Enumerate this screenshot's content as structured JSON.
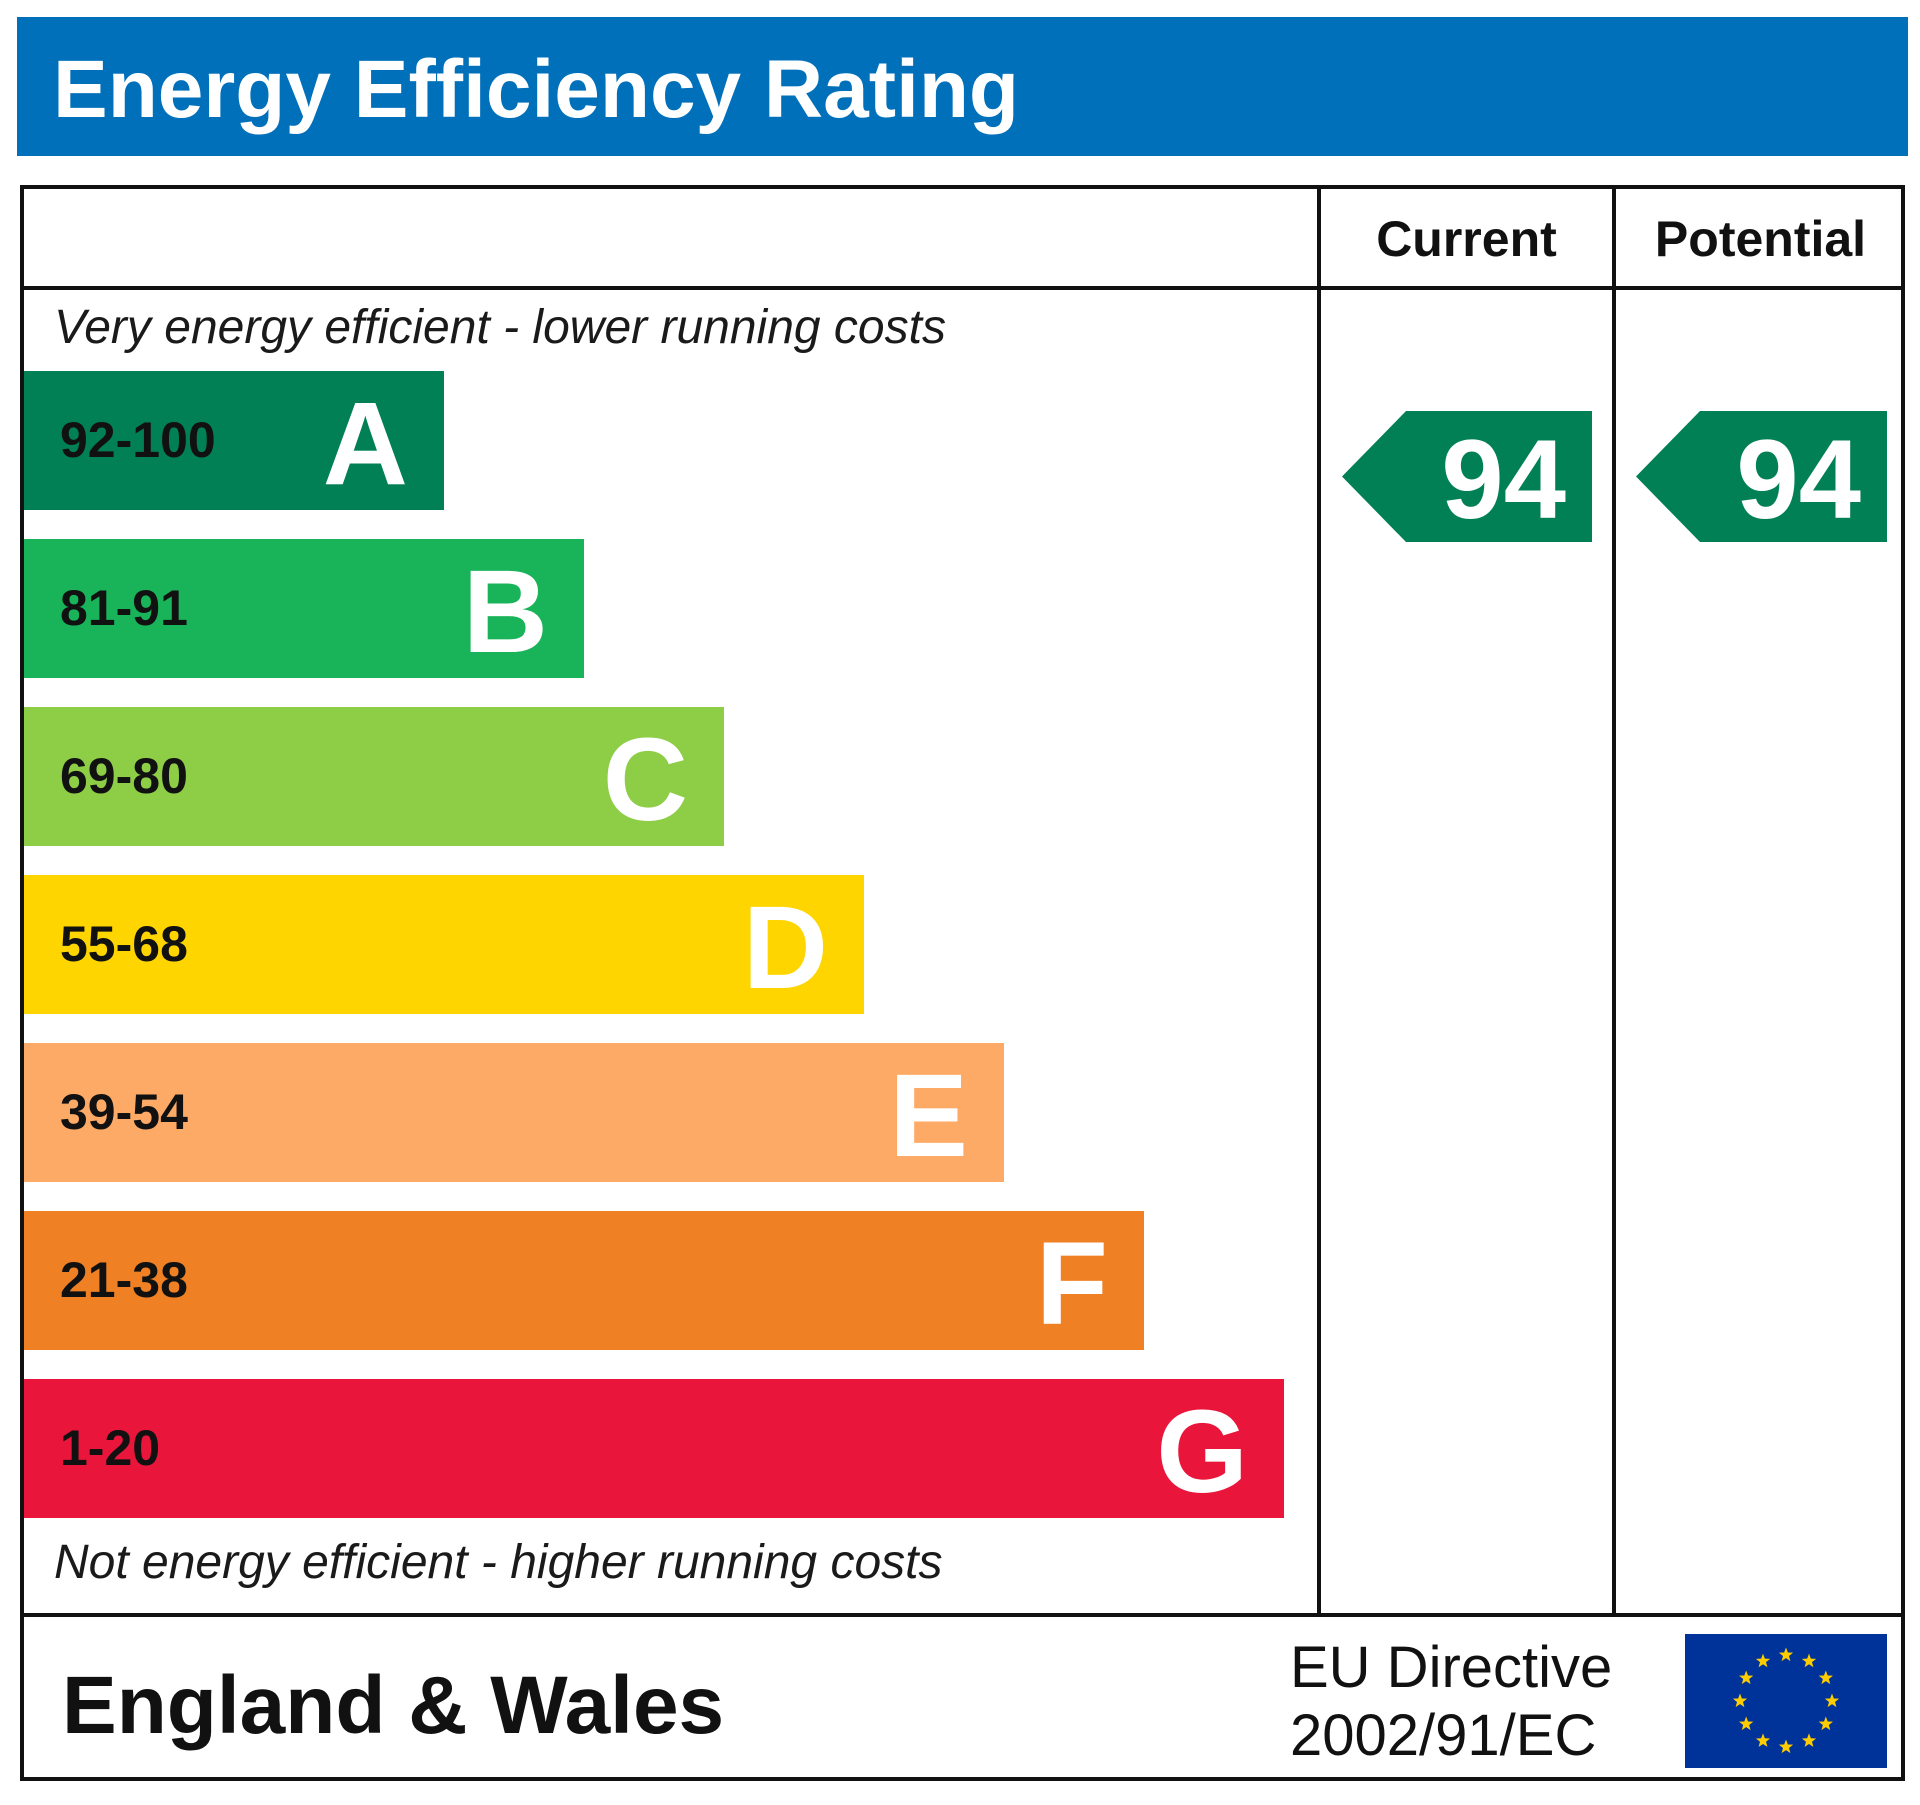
{
  "header": {
    "title": "Energy Efficiency Rating",
    "color": "#0070bb"
  },
  "columns": {
    "current": "Current",
    "potential": "Potential"
  },
  "notes": {
    "top": "Very energy efficient - lower running costs",
    "bottom": "Not energy efficient - higher running costs"
  },
  "chart_data": {
    "type": "bar",
    "title": "Energy Efficiency Rating",
    "bands": [
      {
        "letter": "A",
        "range": "92-100",
        "min": 92,
        "max": 100,
        "color": "#008054"
      },
      {
        "letter": "B",
        "range": "81-91",
        "min": 81,
        "max": 91,
        "color": "#19b459"
      },
      {
        "letter": "C",
        "range": "69-80",
        "min": 69,
        "max": 80,
        "color": "#8dce46"
      },
      {
        "letter": "D",
        "range": "55-68",
        "min": 55,
        "max": 68,
        "color": "#ffd500"
      },
      {
        "letter": "E",
        "range": "39-54",
        "min": 39,
        "max": 54,
        "color": "#fcaa65"
      },
      {
        "letter": "F",
        "range": "21-38",
        "min": 21,
        "max": 38,
        "color": "#ef8023"
      },
      {
        "letter": "G",
        "range": "1-20",
        "min": 1,
        "max": 20,
        "color": "#e9153b"
      }
    ],
    "current": {
      "value": "94",
      "band": "A",
      "color": "#008054"
    },
    "potential": {
      "value": "94",
      "band": "A",
      "color": "#008054"
    }
  },
  "footer": {
    "region": "England & Wales",
    "directive_line1": "EU Directive",
    "directive_line2": "2002/91/EC",
    "flag_blue": "#003399",
    "flag_star": "#ffcc00"
  }
}
